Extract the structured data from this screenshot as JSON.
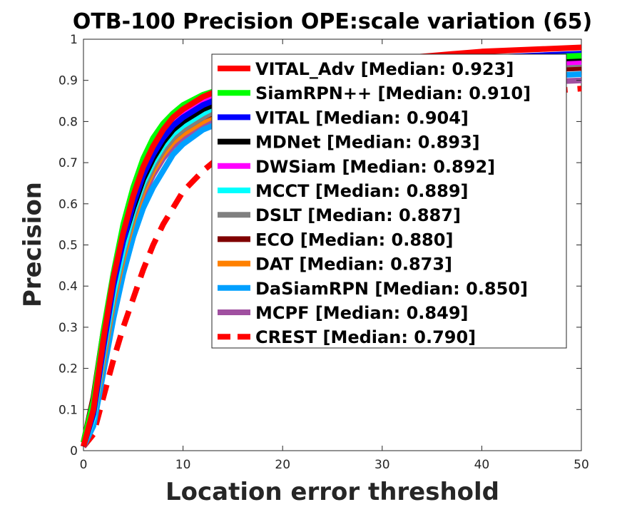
{
  "chart_data": {
    "type": "line",
    "title": "OTB-100 Precision OPE:scale variation (65)",
    "xlabel": "Location error threshold",
    "ylabel": "Precision",
    "xlim": [
      0,
      50
    ],
    "ylim": [
      0,
      1
    ],
    "x_ticks": [
      "0",
      "10",
      "20",
      "30",
      "40",
      "50"
    ],
    "y_ticks": [
      "0",
      "0.1",
      "0.2",
      "0.3",
      "0.4",
      "0.5",
      "0.6",
      "0.7",
      "0.8",
      "0.9",
      "1"
    ],
    "grid": false,
    "legend_position": "top-right",
    "x": [
      0,
      1,
      2,
      3,
      4,
      5,
      6,
      7,
      8,
      9,
      10,
      12,
      14,
      16,
      18,
      20,
      25,
      30,
      35,
      40,
      45,
      50
    ],
    "series": [
      {
        "name": "VITAL_Adv [Median: 0.923]",
        "color": "#ff0000",
        "dash": false,
        "values": [
          0.01,
          0.1,
          0.27,
          0.42,
          0.53,
          0.62,
          0.69,
          0.74,
          0.78,
          0.81,
          0.83,
          0.86,
          0.88,
          0.895,
          0.905,
          0.915,
          0.935,
          0.95,
          0.96,
          0.97,
          0.975,
          0.98
        ]
      },
      {
        "name": "SiamRPN++ [Median: 0.910]",
        "color": "#00ff00",
        "dash": false,
        "values": [
          0.02,
          0.12,
          0.29,
          0.43,
          0.55,
          0.64,
          0.71,
          0.76,
          0.795,
          0.82,
          0.84,
          0.865,
          0.88,
          0.89,
          0.9,
          0.908,
          0.92,
          0.93,
          0.94,
          0.95,
          0.955,
          0.96
        ]
      },
      {
        "name": "VITAL [Median: 0.904]",
        "color": "#0000ff",
        "dash": false,
        "values": [
          0.01,
          0.09,
          0.25,
          0.4,
          0.51,
          0.6,
          0.67,
          0.72,
          0.76,
          0.79,
          0.81,
          0.84,
          0.86,
          0.875,
          0.888,
          0.9,
          0.92,
          0.935,
          0.945,
          0.955,
          0.96,
          0.965
        ]
      },
      {
        "name": "MDNet [Median: 0.893]",
        "color": "#000000",
        "dash": false,
        "values": [
          0.01,
          0.1,
          0.26,
          0.41,
          0.51,
          0.59,
          0.66,
          0.71,
          0.75,
          0.78,
          0.8,
          0.83,
          0.85,
          0.865,
          0.878,
          0.89,
          0.91,
          0.925,
          0.935,
          0.945,
          0.95,
          0.955
        ]
      },
      {
        "name": "DWSiam [Median: 0.892]",
        "color": "#ff00ff",
        "dash": false,
        "values": [
          0.01,
          0.1,
          0.27,
          0.41,
          0.53,
          0.62,
          0.68,
          0.73,
          0.77,
          0.8,
          0.82,
          0.85,
          0.865,
          0.875,
          0.883,
          0.89,
          0.905,
          0.915,
          0.925,
          0.935,
          0.94,
          0.945
        ]
      },
      {
        "name": "MCCT [Median: 0.889]",
        "color": "#00ffff",
        "dash": false,
        "values": [
          0.01,
          0.08,
          0.24,
          0.38,
          0.49,
          0.58,
          0.65,
          0.7,
          0.74,
          0.77,
          0.79,
          0.82,
          0.845,
          0.86,
          0.874,
          0.885,
          0.905,
          0.915,
          0.925,
          0.935,
          0.94,
          0.945
        ]
      },
      {
        "name": "DSLT [Median: 0.887]",
        "color": "#808080",
        "dash": false,
        "values": [
          0.01,
          0.08,
          0.23,
          0.37,
          0.48,
          0.57,
          0.64,
          0.69,
          0.73,
          0.76,
          0.78,
          0.81,
          0.835,
          0.855,
          0.87,
          0.882,
          0.9,
          0.91,
          0.92,
          0.93,
          0.935,
          0.94
        ]
      },
      {
        "name": "ECO [Median: 0.880]",
        "color": "#800000",
        "dash": false,
        "values": [
          0.02,
          0.13,
          0.29,
          0.41,
          0.5,
          0.58,
          0.64,
          0.69,
          0.73,
          0.76,
          0.78,
          0.81,
          0.83,
          0.848,
          0.862,
          0.875,
          0.89,
          0.9,
          0.91,
          0.92,
          0.925,
          0.93
        ]
      },
      {
        "name": "DAT [Median: 0.873]",
        "color": "#ff8000",
        "dash": false,
        "values": [
          0.01,
          0.08,
          0.22,
          0.36,
          0.47,
          0.56,
          0.63,
          0.68,
          0.72,
          0.75,
          0.77,
          0.8,
          0.825,
          0.842,
          0.857,
          0.868,
          0.89,
          0.905,
          0.92,
          0.935,
          0.945,
          0.95
        ]
      },
      {
        "name": "DaSiamRPN [Median: 0.850]",
        "color": "#00a0ff",
        "dash": false,
        "values": [
          0.01,
          0.06,
          0.19,
          0.32,
          0.43,
          0.52,
          0.59,
          0.64,
          0.68,
          0.72,
          0.745,
          0.78,
          0.8,
          0.818,
          0.832,
          0.845,
          0.865,
          0.88,
          0.89,
          0.9,
          0.91,
          0.915
        ]
      },
      {
        "name": "MCPF [Median: 0.849]",
        "color": "#a050a0",
        "dash": false,
        "values": [
          0.01,
          0.09,
          0.24,
          0.37,
          0.48,
          0.56,
          0.62,
          0.67,
          0.71,
          0.74,
          0.76,
          0.79,
          0.81,
          0.825,
          0.837,
          0.845,
          0.86,
          0.87,
          0.88,
          0.89,
          0.895,
          0.9
        ]
      },
      {
        "name": "CREST [Median: 0.790]",
        "color": "#ff0000",
        "dash": true,
        "values": [
          0.01,
          0.04,
          0.13,
          0.22,
          0.3,
          0.37,
          0.44,
          0.5,
          0.55,
          0.59,
          0.63,
          0.68,
          0.72,
          0.745,
          0.765,
          0.78,
          0.81,
          0.83,
          0.845,
          0.86,
          0.87,
          0.88
        ]
      }
    ]
  }
}
